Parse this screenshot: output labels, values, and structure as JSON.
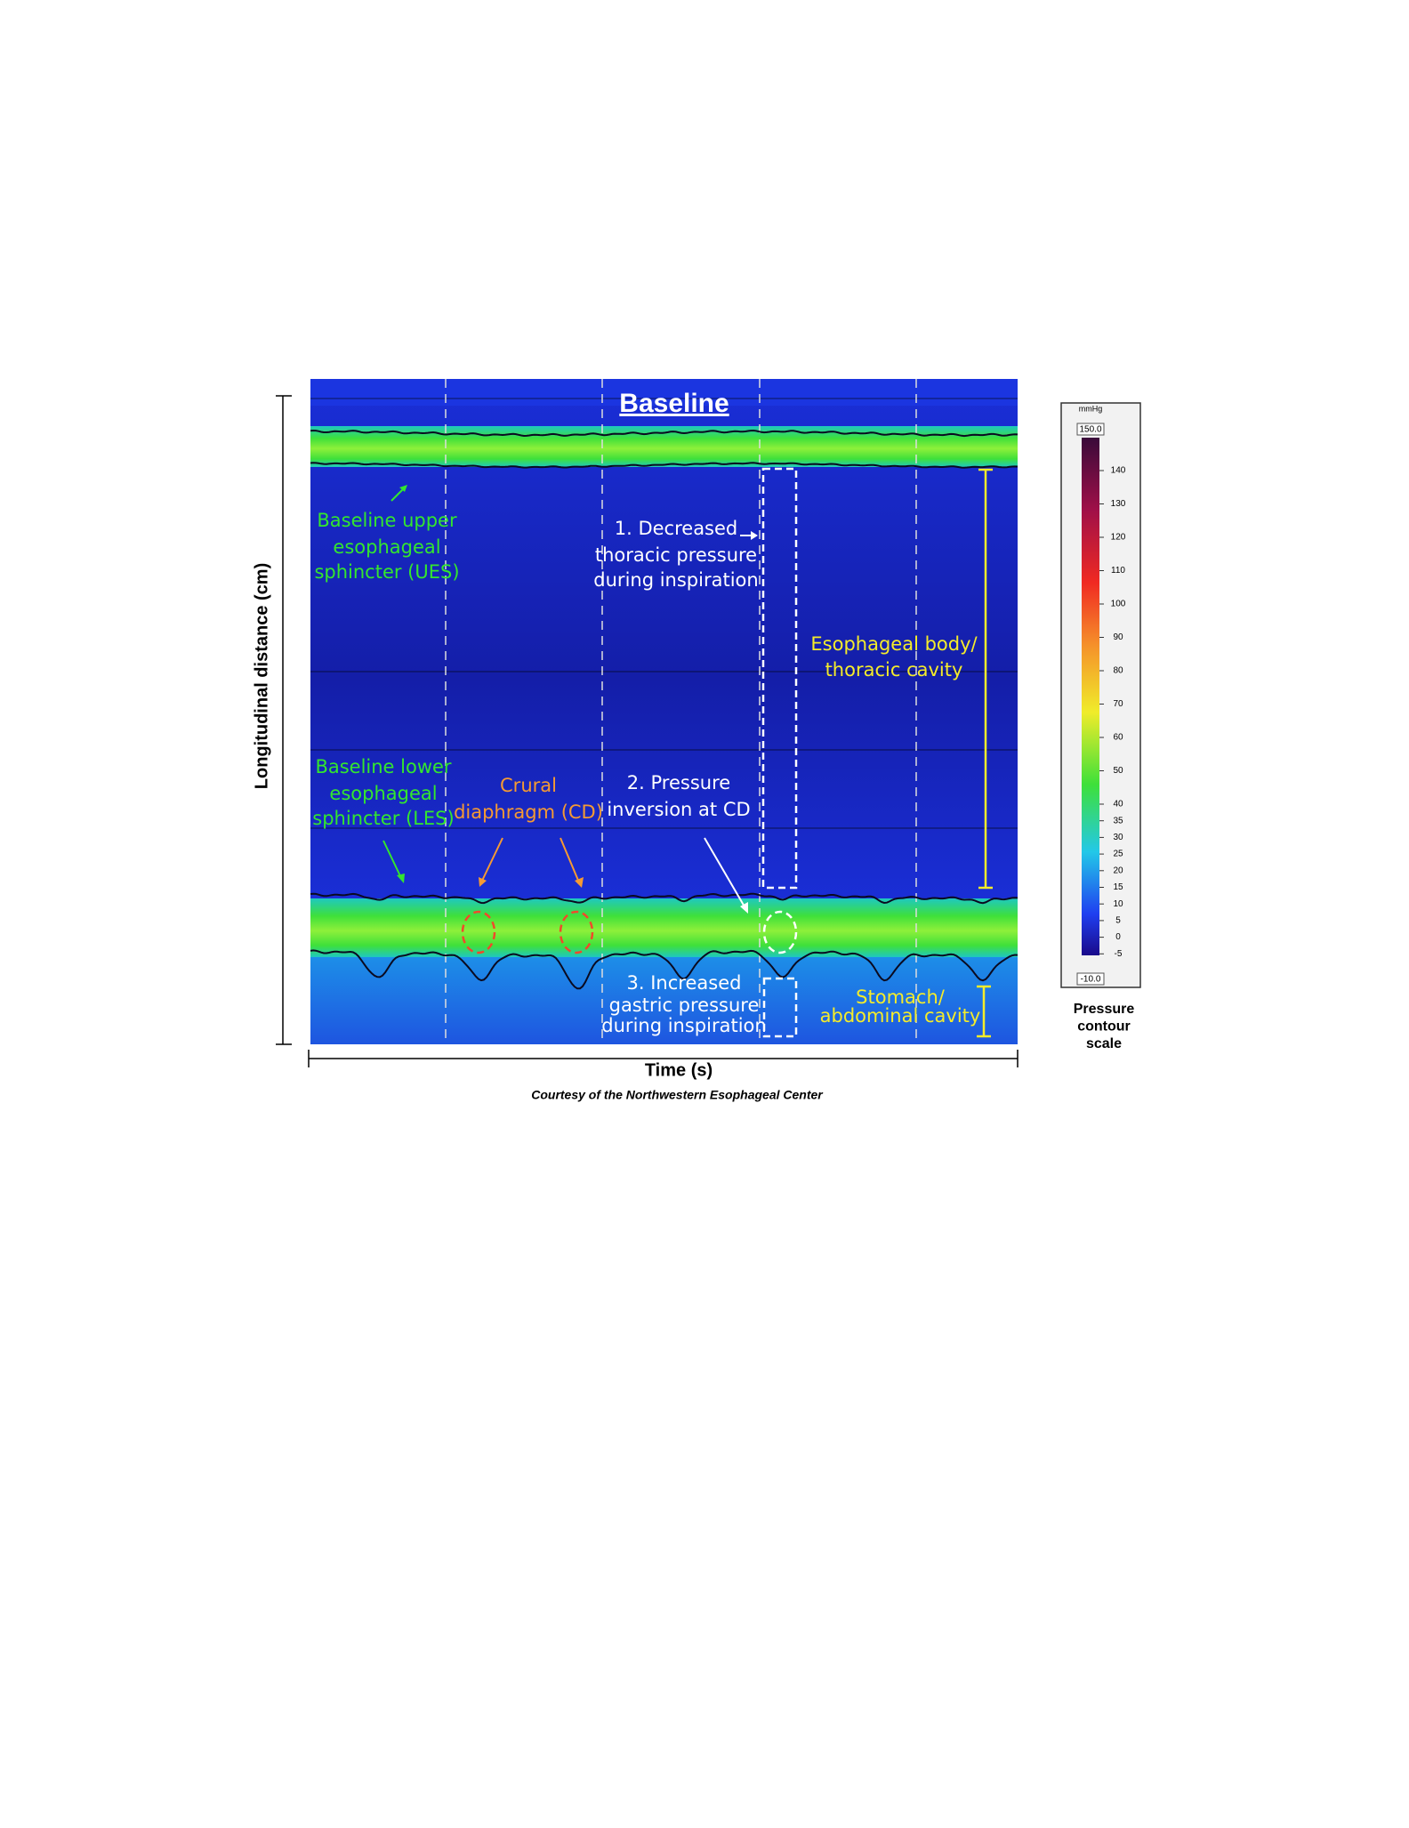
{
  "figure": {
    "title": "Baseline",
    "y_axis_label": "Longitudinal distance (cm)",
    "x_axis_label": "Time (s)",
    "credit": "Courtesy of the Northwestern Esophageal Center"
  },
  "annotations": {
    "ues": [
      "Baseline  upper",
      "esophageal",
      "sphincter (UES)"
    ],
    "thoracic_pressure": [
      "1. Decreased",
      "thoracic pressure",
      "during inspiration"
    ],
    "esophageal_body": [
      "Esophageal body/",
      "thoracic cavity"
    ],
    "les": [
      "Baseline  lower",
      "esophageal",
      "sphincter (LES)"
    ],
    "crural": [
      "Crural",
      "diaphragm (CD)"
    ],
    "inversion": [
      "2. Pressure",
      "inversion at CD"
    ],
    "gastric_pressure": [
      "3. Increased",
      "gastric pressure",
      "during inspiration"
    ],
    "stomach": [
      "Stomach/",
      "abdominal cavity"
    ]
  },
  "color_scale": {
    "unit": "mmHg",
    "max_label": "150.0",
    "min_label": "-10.0",
    "ticks": [
      140,
      130,
      120,
      110,
      100,
      90,
      80,
      70,
      60,
      50,
      40,
      35,
      30,
      25,
      20,
      15,
      10,
      5,
      0,
      -5
    ],
    "caption": [
      "Pressure",
      "contour",
      "scale"
    ]
  }
}
